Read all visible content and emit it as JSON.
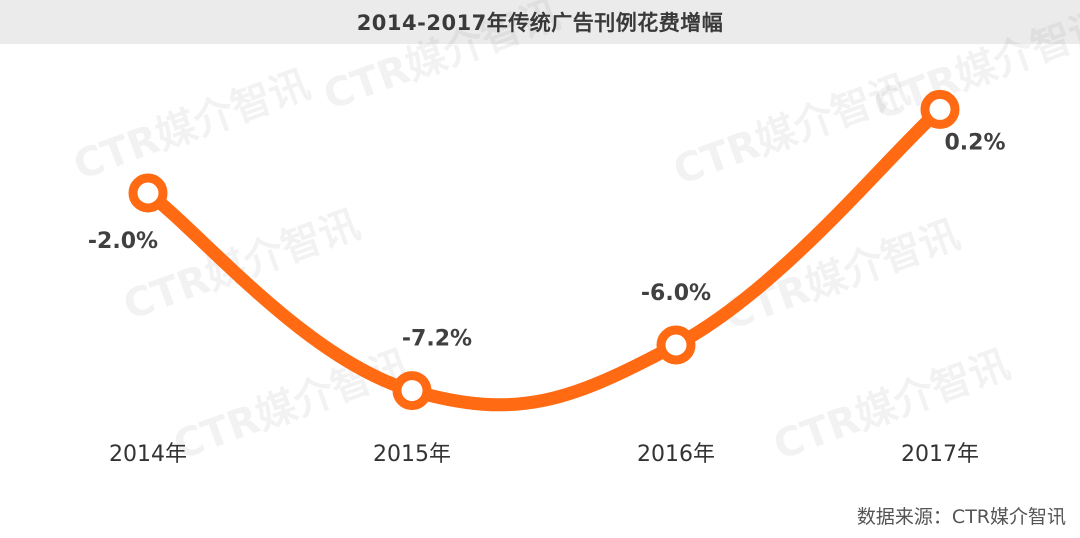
{
  "chart_data": {
    "type": "line",
    "title": "2014-2017年传统广告刊例花费增幅",
    "categories": [
      "2014年",
      "2015年",
      "2016年",
      "2017年"
    ],
    "series": [
      {
        "values": [
          -2.0,
          -7.2,
          -6.0,
          0.2
        ],
        "labels": [
          "-2.0%",
          "-7.2%",
          "-6.0%",
          "0.2%"
        ],
        "color": "#ff6a13"
      }
    ],
    "ylim": [
      -8.5,
      1.5
    ],
    "grid": false,
    "legend": "none"
  },
  "watermark": "CTR媒介智讯",
  "source": "数据来源：CTR媒介智讯"
}
